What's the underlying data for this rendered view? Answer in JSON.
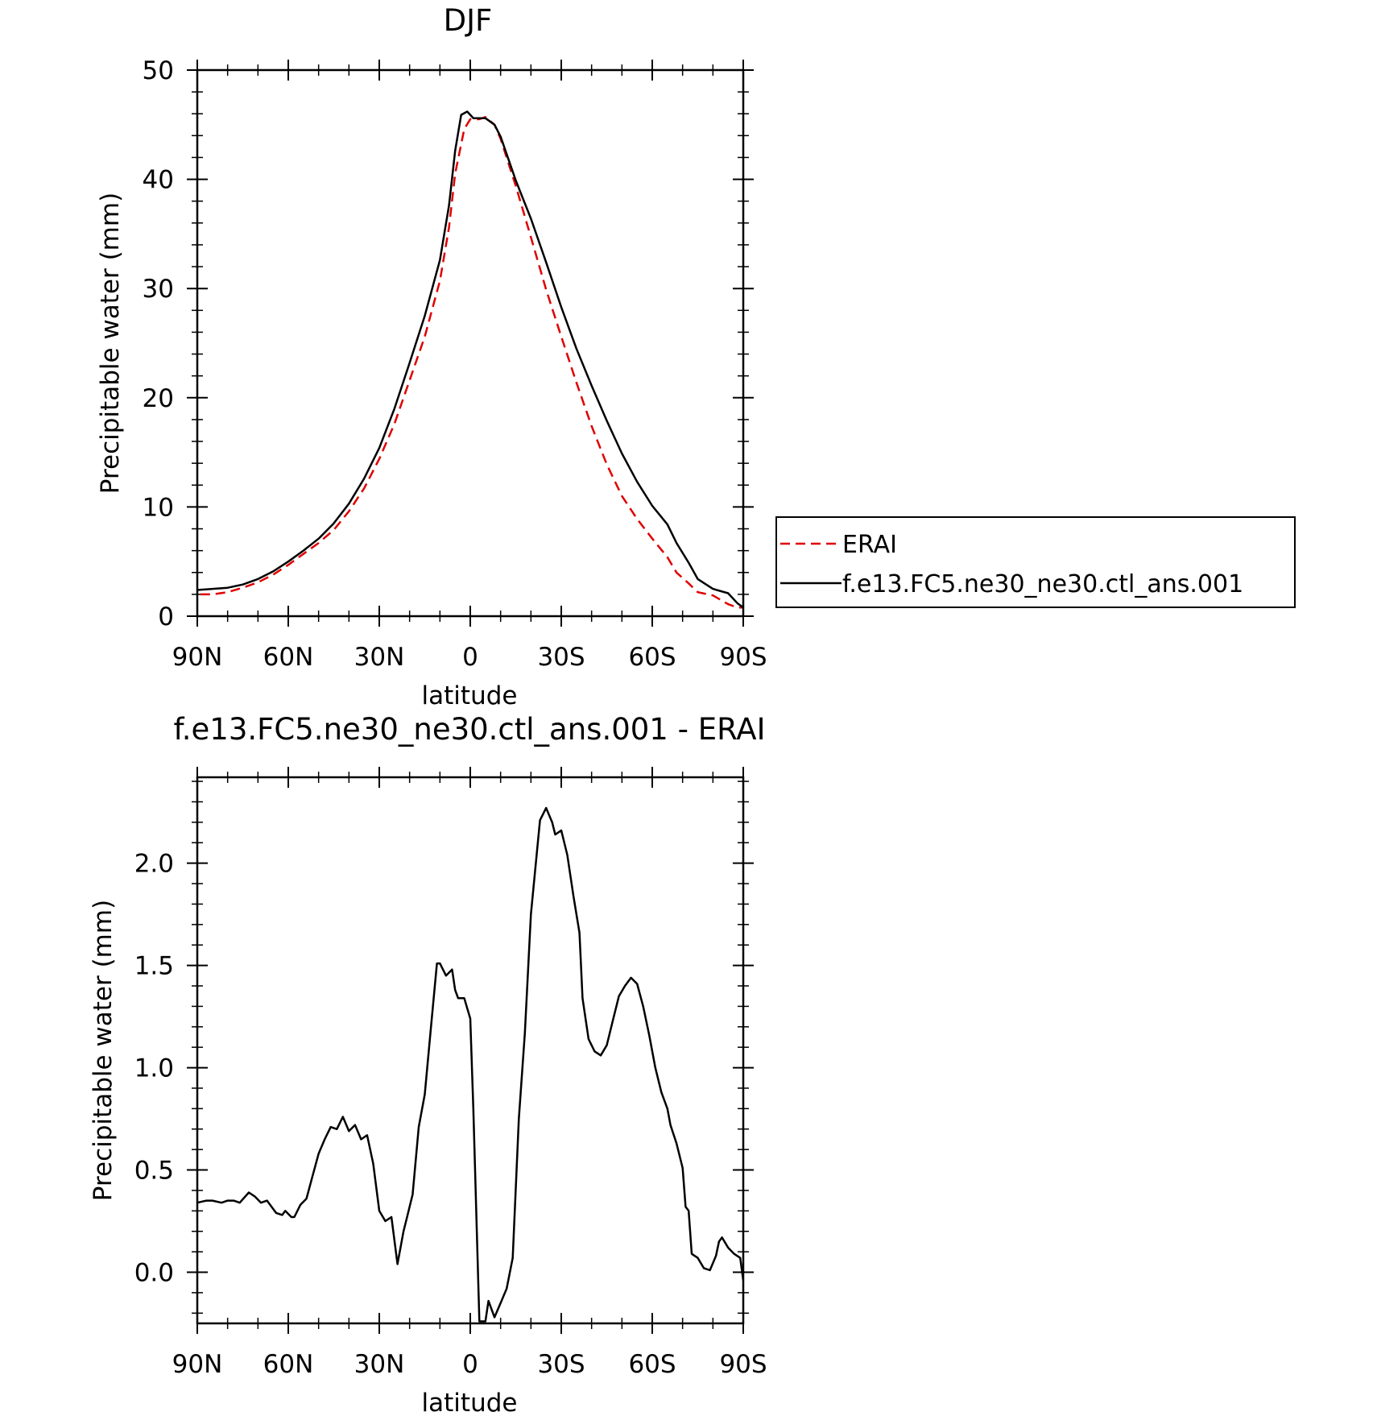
{
  "chart_data": [
    {
      "type": "line",
      "title": "DJF",
      "xlabel": "latitude",
      "ylabel": "Precipitable water (mm)",
      "xlim": [
        -90,
        90
      ],
      "ylim": [
        0,
        50
      ],
      "x_ticks": [
        -90,
        -60,
        -30,
        0,
        30,
        60,
        90
      ],
      "x_tick_labels": [
        "90N",
        "60N",
        "30N",
        "0",
        "30S",
        "60S",
        "90S"
      ],
      "y_ticks": [
        0,
        10,
        20,
        30,
        40,
        50
      ],
      "y_tick_labels": [
        "0",
        "10",
        "20",
        "30",
        "40",
        "50"
      ],
      "legend": {
        "placement": "right",
        "entries": [
          "ERAI",
          "f.e13.FC5.ne30_ne30.ctl_ans.001"
        ]
      },
      "series": [
        {
          "name": "ERAI",
          "color": "#e00000",
          "style": "dashed",
          "x": [
            -89,
            -85,
            -80,
            -75,
            -70,
            -65,
            -60,
            -55,
            -50,
            -45,
            -40,
            -35,
            -30,
            -25,
            -20,
            -15,
            -10,
            -7,
            -5,
            -2,
            0,
            3,
            5,
            8,
            10,
            15,
            20,
            25,
            30,
            35,
            40,
            45,
            50,
            55,
            60,
            65,
            68,
            72,
            75,
            80,
            85,
            88,
            90
          ],
          "y": [
            2.0,
            2.0,
            2.2,
            2.6,
            3.1,
            3.8,
            4.7,
            5.7,
            6.7,
            7.9,
            9.6,
            11.7,
            14.4,
            17.6,
            21.6,
            25.6,
            30.7,
            35.6,
            40.5,
            44.6,
            45.5,
            45.5,
            45.7,
            45.0,
            43.7,
            39.4,
            34.7,
            29.9,
            25.6,
            21.4,
            17.4,
            13.9,
            11.0,
            8.9,
            7.1,
            5.4,
            4.0,
            3.0,
            2.2,
            1.9,
            1.1,
            0.8,
            0.8
          ]
        },
        {
          "name": "f.e13.FC5.ne30_ne30.ctl_ans.001",
          "color": "#000000",
          "style": "solid",
          "x": [
            -90,
            -85,
            -80,
            -75,
            -70,
            -65,
            -60,
            -55,
            -50,
            -45,
            -40,
            -35,
            -30,
            -25,
            -20,
            -15,
            -10,
            -7,
            -5,
            -3,
            -1,
            1,
            3,
            5,
            8,
            10,
            15,
            20,
            25,
            30,
            35,
            40,
            45,
            50,
            55,
            60,
            65,
            68,
            72,
            75,
            80,
            85,
            88,
            90
          ],
          "y": [
            2.4,
            2.5,
            2.6,
            2.9,
            3.4,
            4.1,
            5.0,
            6.0,
            7.1,
            8.5,
            10.3,
            12.6,
            15.4,
            19.0,
            23.2,
            27.5,
            32.6,
            37.6,
            42.6,
            45.9,
            46.2,
            45.6,
            45.6,
            45.6,
            45.0,
            43.9,
            39.9,
            36.4,
            32.4,
            28.3,
            24.5,
            21.1,
            17.9,
            14.9,
            12.3,
            10.1,
            8.4,
            6.7,
            4.9,
            3.4,
            2.5,
            2.1,
            1.2,
            0.8
          ]
        }
      ]
    },
    {
      "type": "line",
      "title": "f.e13.FC5.ne30_ne30.ctl_ans.001 - ERAI",
      "xlabel": "latitude",
      "ylabel": "Precipitable water (mm)",
      "xlim": [
        -90,
        90
      ],
      "ylim": [
        -0.25,
        2.42
      ],
      "x_ticks": [
        -90,
        -60,
        -30,
        0,
        30,
        60,
        90
      ],
      "x_tick_labels": [
        "90N",
        "60N",
        "30N",
        "0",
        "30S",
        "60S",
        "90S"
      ],
      "y_ticks": [
        0.0,
        0.5,
        1.0,
        1.5,
        2.0
      ],
      "y_tick_labels": [
        "0.0",
        "0.5",
        "1.0",
        "1.5",
        "2.0"
      ],
      "series": [
        {
          "color": "#000000",
          "style": "solid",
          "x": [
            -90,
            -87,
            -85,
            -82,
            -80,
            -78,
            -76,
            -73,
            -71,
            -69,
            -67,
            -64,
            -62,
            -61,
            -59,
            -58,
            -56,
            -54,
            -52,
            -50,
            -48,
            -46,
            -44,
            -42,
            -40,
            -38,
            -36,
            -34,
            -32,
            -30,
            -28,
            -26,
            -24,
            -22,
            -21,
            -19,
            -17,
            -15,
            -13,
            -11,
            -10,
            -8,
            -6,
            -5,
            -4,
            -2,
            0,
            1,
            3,
            5,
            6,
            8,
            10,
            12,
            14,
            16,
            18,
            20,
            22,
            23,
            25,
            27,
            28,
            30,
            32,
            34,
            36,
            37,
            39,
            41,
            43,
            45,
            47,
            49,
            51,
            53,
            55,
            57,
            59,
            61,
            63,
            65,
            66,
            68,
            70,
            71,
            72,
            73,
            75,
            77,
            79,
            81,
            82,
            83,
            85,
            87,
            89,
            90
          ],
          "y": [
            0.34,
            0.35,
            0.35,
            0.34,
            0.35,
            0.35,
            0.34,
            0.39,
            0.37,
            0.34,
            0.35,
            0.29,
            0.28,
            0.3,
            0.27,
            0.27,
            0.33,
            0.36,
            0.47,
            0.58,
            0.65,
            0.71,
            0.7,
            0.76,
            0.69,
            0.72,
            0.65,
            0.67,
            0.53,
            0.3,
            0.25,
            0.27,
            0.04,
            0.2,
            0.26,
            0.38,
            0.71,
            0.87,
            1.19,
            1.51,
            1.51,
            1.45,
            1.48,
            1.38,
            1.34,
            1.34,
            1.24,
            0.8,
            -0.24,
            -0.24,
            -0.14,
            -0.22,
            -0.15,
            -0.08,
            0.07,
            0.75,
            1.17,
            1.75,
            2.06,
            2.21,
            2.27,
            2.2,
            2.14,
            2.16,
            2.04,
            1.84,
            1.66,
            1.34,
            1.14,
            1.08,
            1.06,
            1.11,
            1.23,
            1.35,
            1.4,
            1.44,
            1.41,
            1.3,
            1.16,
            1.0,
            0.88,
            0.8,
            0.72,
            0.63,
            0.51,
            0.32,
            0.3,
            0.09,
            0.07,
            0.02,
            0.01,
            0.08,
            0.15,
            0.17,
            0.12,
            0.09,
            0.07,
            -0.04
          ]
        }
      ]
    }
  ]
}
